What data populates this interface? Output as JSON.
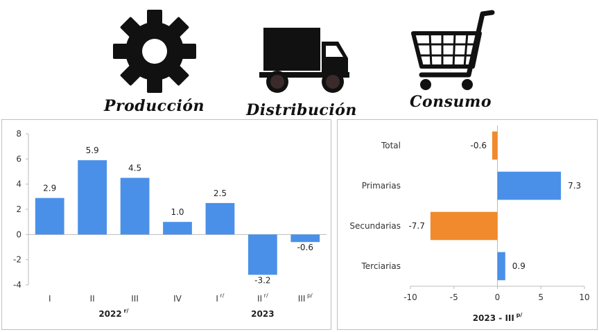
{
  "icons": [
    {
      "icon": "gear-icon",
      "label": "Producción"
    },
    {
      "icon": "truck-icon",
      "label": "Distribución"
    },
    {
      "icon": "shopping-cart-icon",
      "label": "Consumo"
    }
  ],
  "chart_data": [
    {
      "type": "bar",
      "categories": [
        "I",
        "II",
        "III",
        "IV",
        "I",
        "II",
        "III"
      ],
      "category_superscripts": [
        "",
        "",
        "",
        "",
        "r/",
        "r/",
        "p/"
      ],
      "values": [
        2.9,
        5.9,
        4.5,
        1.0,
        2.5,
        -3.2,
        -0.6
      ],
      "value_labels": [
        "2.9",
        "5.9",
        "4.5",
        "1.0",
        "2.5",
        "-3.2",
        "-0.6"
      ],
      "groups": [
        {
          "label": "2022",
          "superscript": "r/",
          "start": 0,
          "end": 3
        },
        {
          "label": "2023",
          "superscript": "",
          "start": 4,
          "end": 6
        }
      ],
      "ylim": [
        -4,
        8
      ],
      "yticks": [
        "-4",
        "-2",
        "0",
        "2",
        "4",
        "6",
        "8"
      ],
      "color": "#4a90e8"
    },
    {
      "type": "bar",
      "orientation": "horizontal",
      "categories": [
        "Total",
        "Primarias",
        "Secundarias",
        "Terciarias"
      ],
      "values": [
        -0.6,
        7.3,
        -7.7,
        0.9
      ],
      "value_labels": [
        "-0.6",
        "7.3",
        "-7.7",
        "0.9"
      ],
      "colors": [
        "#f08a2c",
        "#4a90e8",
        "#f08a2c",
        "#4a90e8"
      ],
      "xlim": [
        -10,
        10
      ],
      "xticks": [
        "-10",
        "-5",
        "0",
        "5",
        "10"
      ],
      "xlabel": "2023 - III",
      "xlabel_superscript": "p/"
    }
  ]
}
